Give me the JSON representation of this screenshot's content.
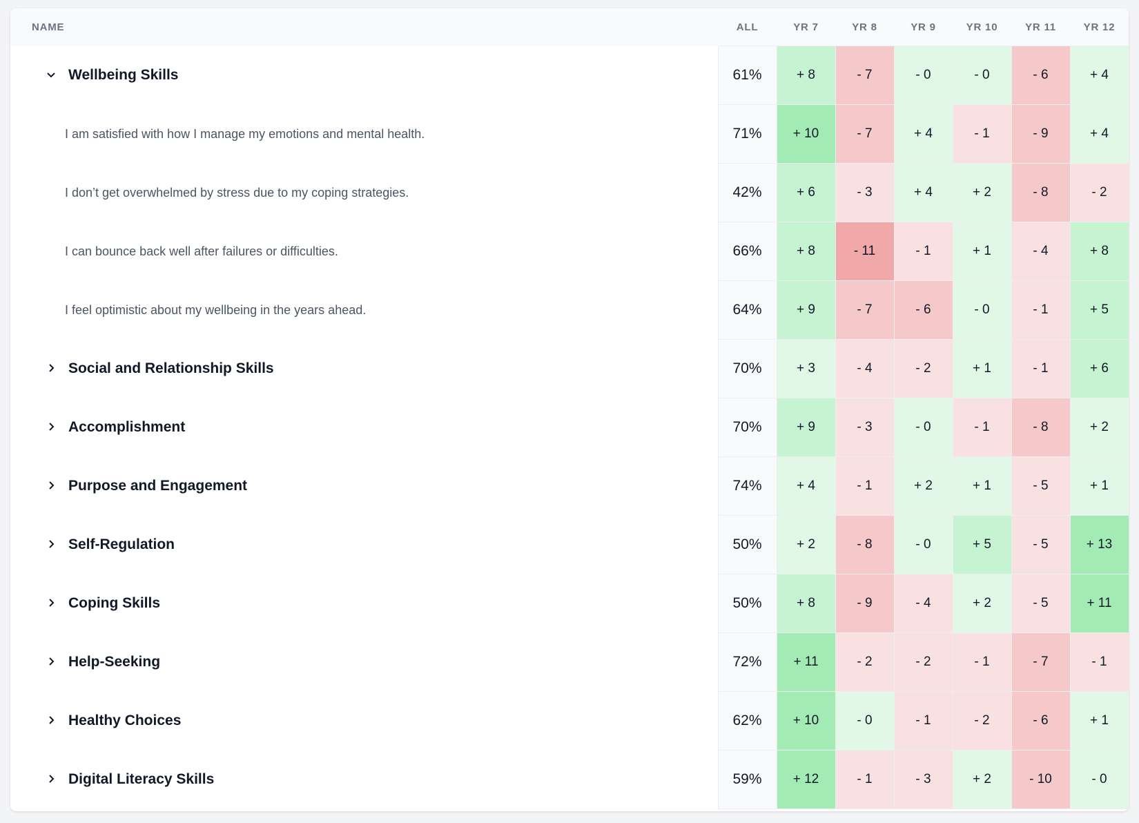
{
  "header": {
    "columns": [
      "NAME",
      "ALL",
      "YR 7",
      "YR 8",
      "YR 9",
      "YR 10",
      "YR 11",
      "YR 12"
    ]
  },
  "groups": [
    {
      "name": "Wellbeing Skills",
      "all": "61%",
      "changes": [
        "+ 8",
        "- 7",
        "- 0",
        "- 0",
        "- 6",
        "+ 4"
      ],
      "items": [
        {
          "name": "I am satisfied with how I manage my emotions and mental health.",
          "all": "71%",
          "changes": [
            "+ 10",
            "- 7",
            "+ 4",
            "- 1",
            "- 9",
            "+ 4"
          ]
        },
        {
          "name": "I don’t get overwhelmed by stress due to my coping strategies.",
          "all": "42%",
          "changes": [
            "+ 6",
            "- 3",
            "+ 4",
            "+ 2",
            "- 8",
            "- 2"
          ]
        },
        {
          "name": "I can bounce back well after failures or difficulties.",
          "all": "66%",
          "changes": [
            "+ 8",
            "- 11",
            "- 1",
            "+ 1",
            "- 4",
            "+ 8"
          ]
        },
        {
          "name": "I feel optimistic about my wellbeing in the years ahead.",
          "all": "64%",
          "changes": [
            "+ 9",
            "- 7",
            "- 6",
            "- 0",
            "- 1",
            "+ 5"
          ]
        }
      ]
    },
    {
      "name": "Social and Relationship Skills",
      "all": "70%",
      "changes": [
        "+ 3",
        "- 4",
        "- 2",
        "+ 1",
        "- 1",
        "+ 6"
      ]
    },
    {
      "name": "Accomplishment",
      "all": "70%",
      "changes": [
        "+ 9",
        "- 3",
        "- 0",
        "- 1",
        "- 8",
        "+ 2"
      ]
    },
    {
      "name": "Purpose and Engagement",
      "all": "74%",
      "changes": [
        "+ 4",
        "- 1",
        "+ 2",
        "+ 1",
        "- 5",
        "+ 1"
      ]
    },
    {
      "name": "Self-Regulation",
      "all": "50%",
      "changes": [
        "+ 2",
        "- 8",
        "- 0",
        "+ 5",
        "- 5",
        "+ 13"
      ]
    },
    {
      "name": "Coping Skills",
      "all": "50%",
      "changes": [
        "+ 8",
        "- 9",
        "- 4",
        "+ 2",
        "- 5",
        "+ 11"
      ]
    },
    {
      "name": "Help-Seeking",
      "all": "72%",
      "changes": [
        "+ 11",
        "- 2",
        "- 2",
        "- 1",
        "- 7",
        "- 1"
      ]
    },
    {
      "name": "Healthy Choices",
      "all": "62%",
      "changes": [
        "+ 10",
        "- 0",
        "- 1",
        "- 2",
        "- 6",
        "+ 1"
      ]
    },
    {
      "name": "Digital Literacy Skills",
      "all": "59%",
      "changes": [
        "+ 12",
        "- 1",
        "- 3",
        "+ 2",
        "- 10",
        "- 0"
      ]
    }
  ]
}
